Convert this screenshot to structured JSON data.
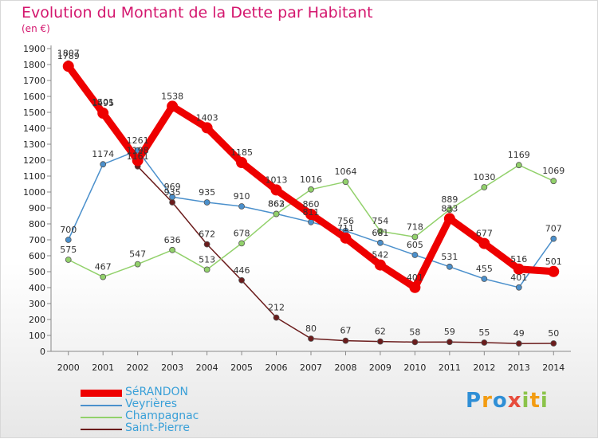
{
  "chart_data": {
    "type": "line",
    "title": "Evolution du Montant de la Dette par Habitant",
    "subtitle": "(en €)",
    "xlabel": "",
    "ylabel": "",
    "x": [
      2000,
      2001,
      2002,
      2003,
      2004,
      2005,
      2006,
      2007,
      2008,
      2009,
      2010,
      2011,
      2012,
      2013,
      2014
    ],
    "y_ticks": [
      0,
      100,
      200,
      300,
      400,
      500,
      600,
      700,
      800,
      900,
      1000,
      1100,
      1200,
      1300,
      1400,
      1500,
      1600,
      1700,
      1800,
      1900
    ],
    "ylim": [
      0,
      1900
    ],
    "grid": false,
    "legend_position": "bottom-left",
    "series": [
      {
        "name": "SéRANDON",
        "color": "#ee0000",
        "values": [
          1789,
          1495,
          1198,
          1538,
          1403,
          1185,
          1013,
          860,
          711,
          542,
          401,
          833,
          677,
          516,
          501
        ]
      },
      {
        "name": "Veyrières",
        "color": "#4b90cc",
        "values": [
          700,
          1174,
          1261,
          969,
          935,
          910,
          863,
          811,
          756,
          681,
          605,
          531,
          455,
          401,
          707
        ]
      },
      {
        "name": "Champagnac",
        "color": "#92d16b",
        "values": [
          575,
          467,
          547,
          636,
          513,
          678,
          862,
          1016,
          1064,
          754,
          718,
          889,
          1030,
          1169,
          1069
        ]
      },
      {
        "name": "Saint-Pierre",
        "color": "#6b1c1c",
        "values": [
          1807,
          1501,
          1161,
          935,
          672,
          446,
          212,
          80,
          67,
          62,
          58,
          59,
          55,
          49,
          50
        ]
      }
    ]
  },
  "logo": {
    "letters": [
      "P",
      "r",
      "o",
      "x",
      "i",
      "t",
      "i"
    ],
    "colors": [
      "#2f8fd6",
      "#f39c12",
      "#2f8fd6",
      "#e74c3c",
      "#8bc34a",
      "#f39c12",
      "#8bc34a"
    ]
  }
}
